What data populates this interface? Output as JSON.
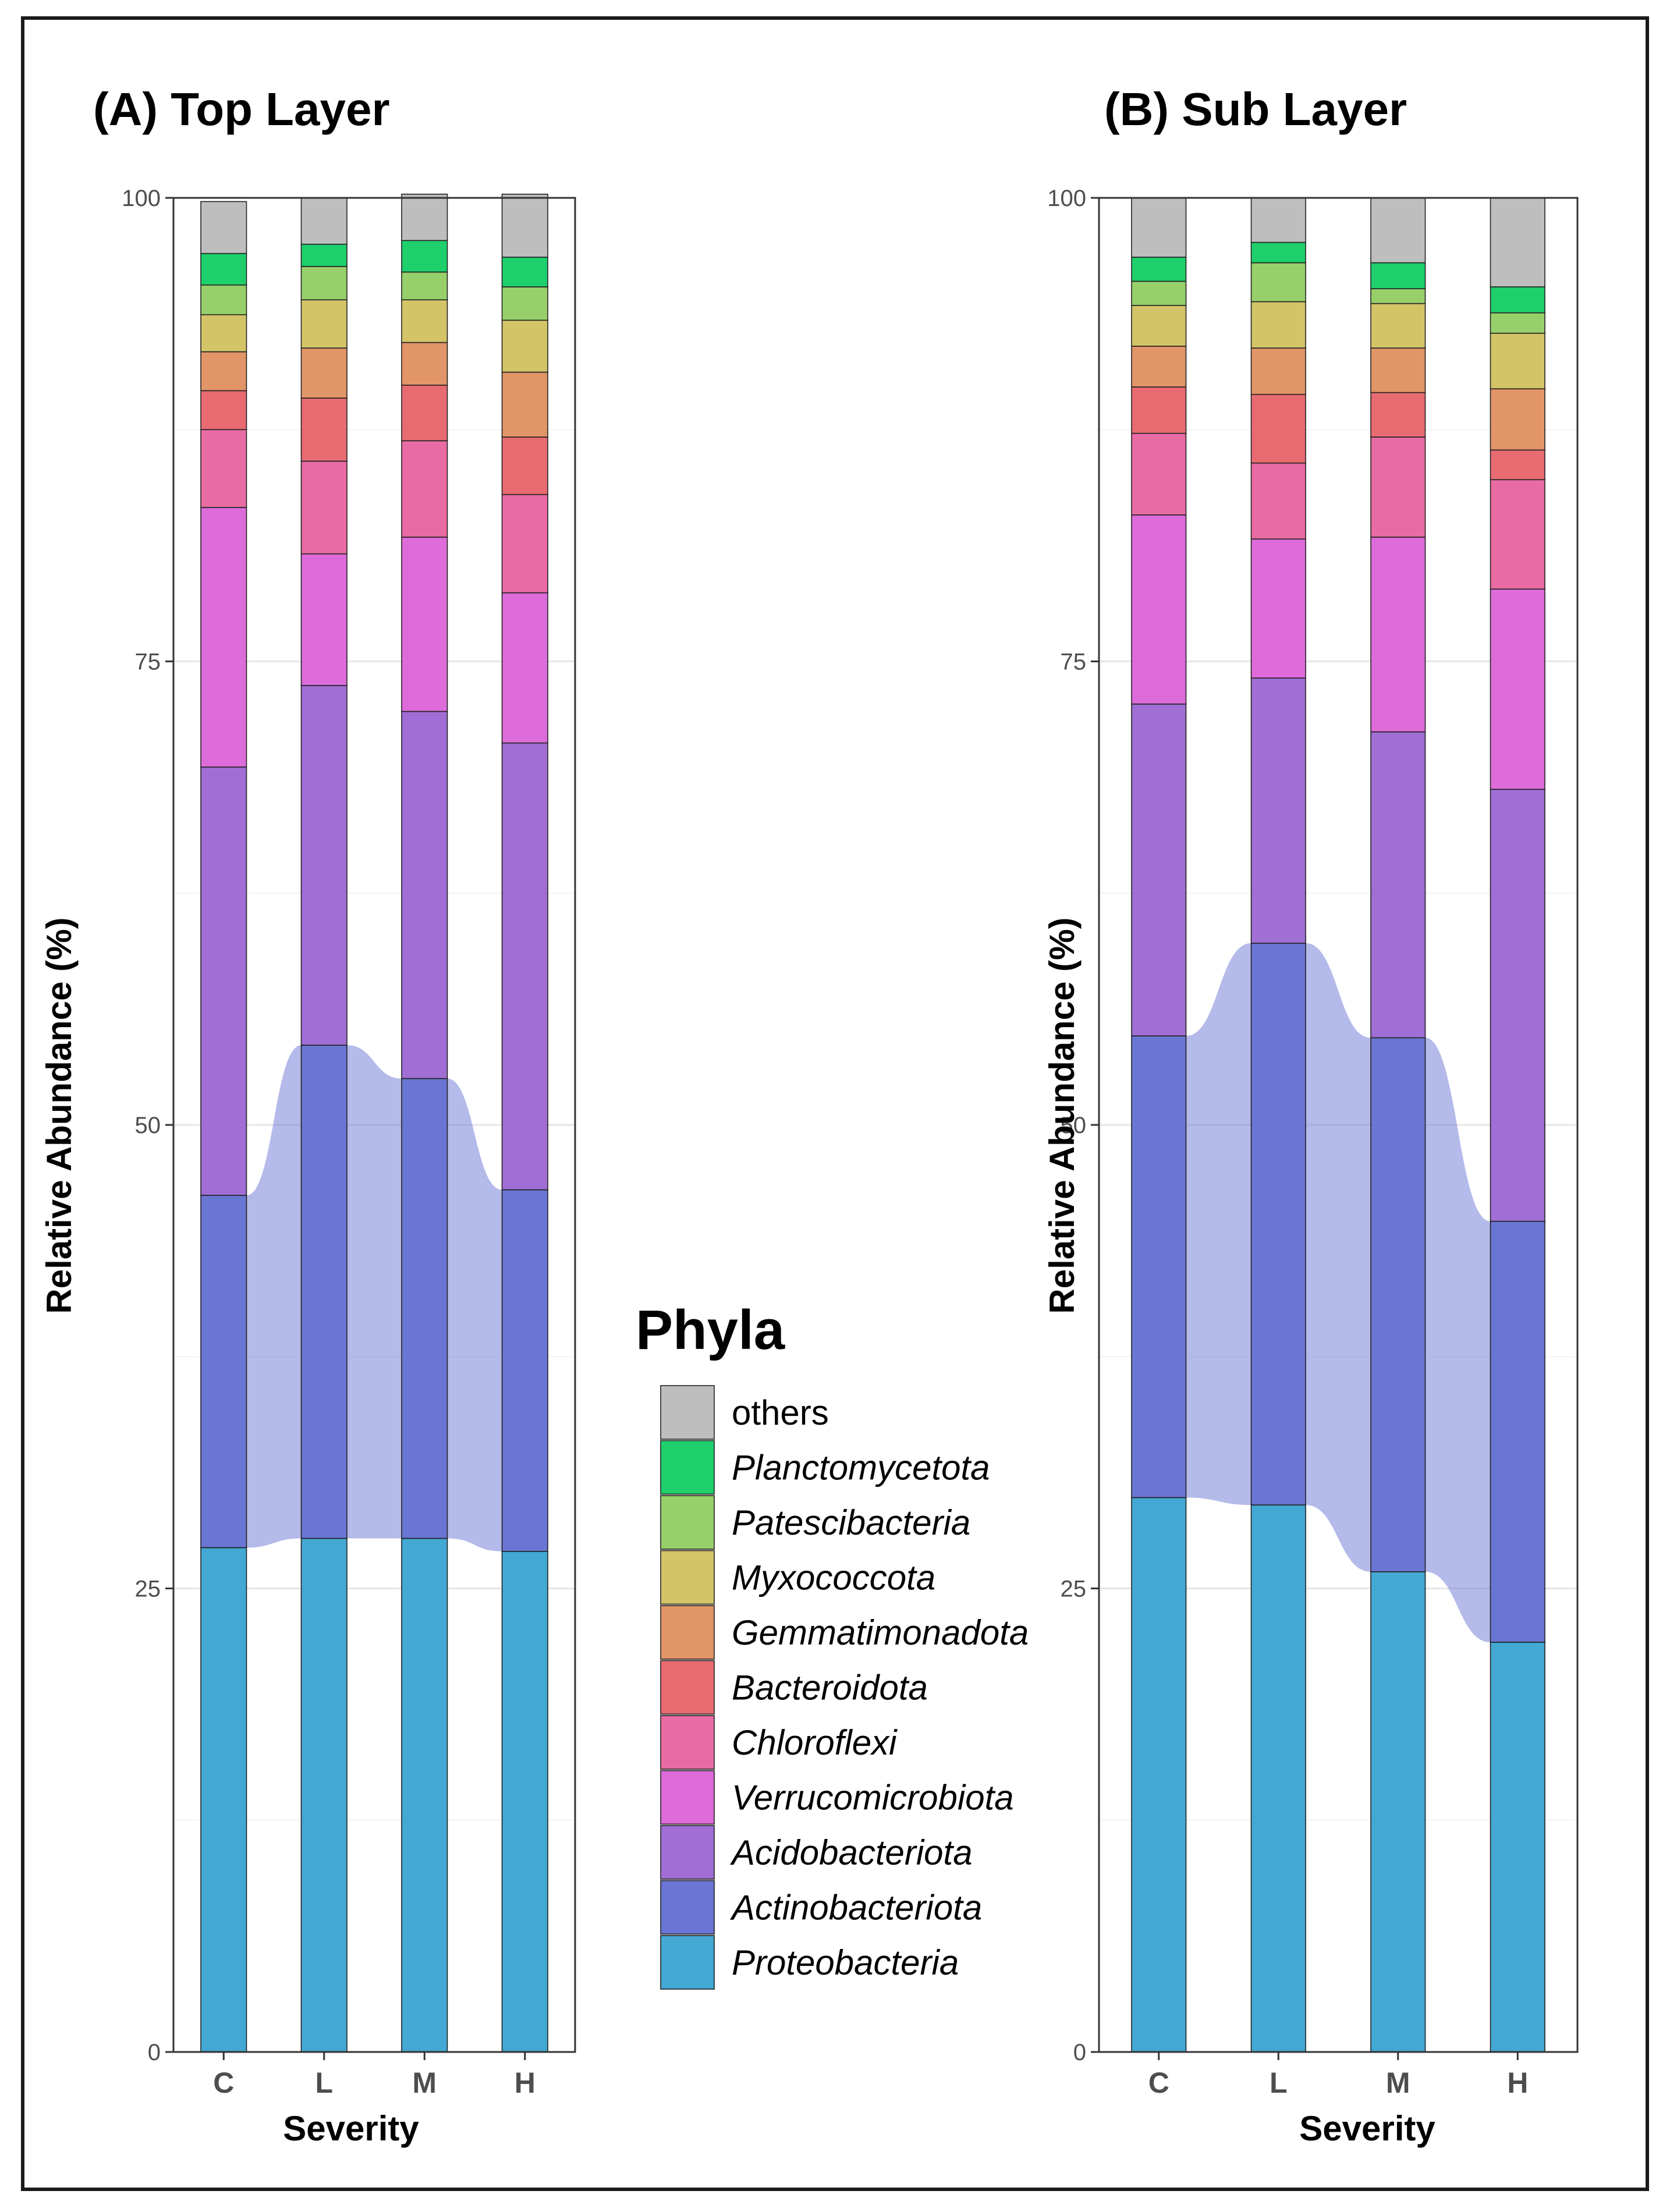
{
  "legend": {
    "title": "Phyla",
    "items": [
      {
        "label": "others",
        "color": "#BEBEBE",
        "italic": false
      },
      {
        "label": "Planctomycetota",
        "color": "#1ECF6B",
        "italic": true
      },
      {
        "label": "Patescibacteria",
        "color": "#97D06B",
        "italic": true
      },
      {
        "label": "Myxococcota",
        "color": "#D4C468",
        "italic": true
      },
      {
        "label": "Gemmatimonadota",
        "color": "#E29568",
        "italic": true
      },
      {
        "label": "Bacteroidota",
        "color": "#E86B72",
        "italic": true
      },
      {
        "label": "Chloroflexi",
        "color": "#E96BA3",
        "italic": true
      },
      {
        "label": "Verrucomicrobiota",
        "color": "#DD6BD9",
        "italic": true
      },
      {
        "label": "Acidobacteriota",
        "color": "#A06ED4",
        "italic": true
      },
      {
        "label": "Actinobacteriota",
        "color": "#6A76D3",
        "italic": true
      },
      {
        "label": "Proteobacteria",
        "color": "#43A8D3",
        "italic": true
      }
    ]
  },
  "band_color": "#6A76D3",
  "chart_data": [
    {
      "type": "bar",
      "stacked": true,
      "title": "(A) Top Layer",
      "xlabel": "Severity",
      "ylabel": "Relative Abundance (%)",
      "categories": [
        "C",
        "L",
        "M",
        "H"
      ],
      "ylim": [
        0,
        100
      ],
      "yticks": [
        "0",
        "25",
        "50",
        "75",
        "100"
      ],
      "highlight_band": "Actinobacteriota",
      "series": [
        {
          "name": "Proteobacteria",
          "values": [
            27.2,
            27.7,
            27.7,
            27.0
          ]
        },
        {
          "name": "Actinobacteriota",
          "values": [
            19.0,
            26.6,
            24.8,
            19.5
          ]
        },
        {
          "name": "Acidobacteriota",
          "values": [
            23.1,
            19.4,
            19.8,
            24.1
          ]
        },
        {
          "name": "Verrucomicrobiota",
          "values": [
            14.0,
            7.1,
            9.4,
            8.1
          ]
        },
        {
          "name": "Chloroflexi",
          "values": [
            4.2,
            5.0,
            5.2,
            5.3
          ]
        },
        {
          "name": "Bacteroidota",
          "values": [
            2.1,
            3.4,
            3.0,
            3.1
          ]
        },
        {
          "name": "Gemmatimonadota",
          "values": [
            2.1,
            2.7,
            2.3,
            3.5
          ]
        },
        {
          "name": "Myxococcota",
          "values": [
            2.0,
            2.6,
            2.3,
            2.8
          ]
        },
        {
          "name": "Patescibacteria",
          "values": [
            1.6,
            1.8,
            1.5,
            1.8
          ]
        },
        {
          "name": "Planctomycetota",
          "values": [
            1.7,
            1.2,
            1.7,
            1.6
          ]
        },
        {
          "name": "others",
          "values": [
            2.8,
            2.5,
            2.5,
            3.4
          ]
        }
      ]
    },
    {
      "type": "bar",
      "stacked": true,
      "title": "(B) Sub Layer",
      "xlabel": "Severity",
      "ylabel": "Relative Abundance (%)",
      "categories": [
        "C",
        "L",
        "M",
        "H"
      ],
      "ylim": [
        0,
        100
      ],
      "yticks": [
        "0",
        "25",
        "50",
        "75",
        "100"
      ],
      "highlight_band": "Actinobacteriota",
      "series": [
        {
          "name": "Proteobacteria",
          "values": [
            29.9,
            29.5,
            25.9,
            22.1
          ]
        },
        {
          "name": "Actinobacteriota",
          "values": [
            24.9,
            30.3,
            28.8,
            22.7
          ]
        },
        {
          "name": "Acidobacteriota",
          "values": [
            17.9,
            14.3,
            16.5,
            23.3
          ]
        },
        {
          "name": "Verrucomicrobiota",
          "values": [
            10.2,
            7.5,
            10.5,
            10.8
          ]
        },
        {
          "name": "Chloroflexi",
          "values": [
            4.4,
            4.1,
            5.4,
            5.9
          ]
        },
        {
          "name": "Bacteroidota",
          "values": [
            2.5,
            3.7,
            2.4,
            1.6
          ]
        },
        {
          "name": "Gemmatimonadota",
          "values": [
            2.2,
            2.5,
            2.4,
            3.3
          ]
        },
        {
          "name": "Myxococcota",
          "values": [
            2.2,
            2.5,
            2.4,
            3.0
          ]
        },
        {
          "name": "Patescibacteria",
          "values": [
            1.3,
            2.1,
            0.8,
            1.1
          ]
        },
        {
          "name": "Planctomycetota",
          "values": [
            1.3,
            1.1,
            1.4,
            1.4
          ]
        },
        {
          "name": "others",
          "values": [
            3.2,
            2.4,
            3.5,
            4.8
          ]
        }
      ]
    }
  ]
}
